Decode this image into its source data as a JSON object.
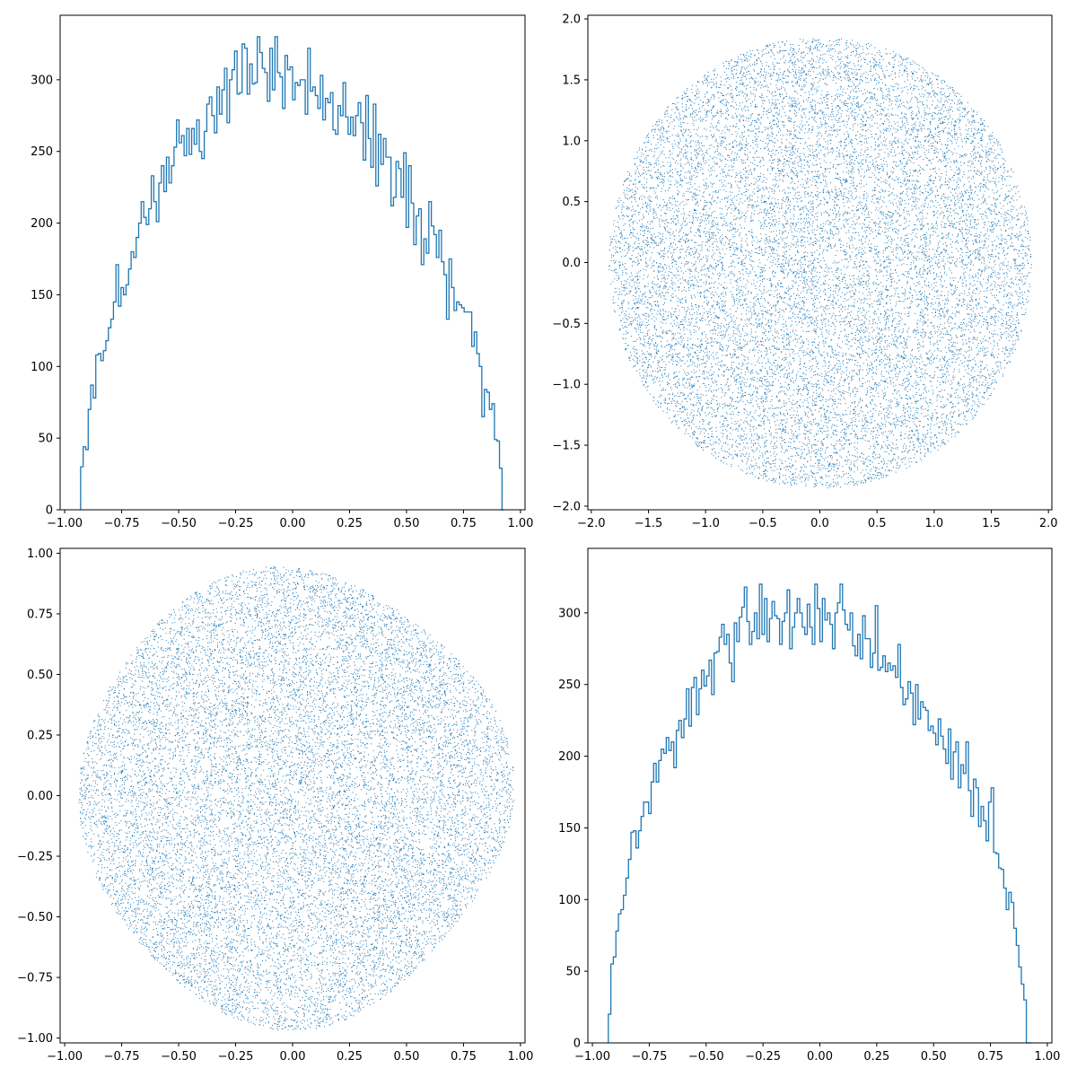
{
  "colors": {
    "series": "#1f77b4",
    "axes": "#000000",
    "background": "#ffffff"
  },
  "chart_data": [
    {
      "type": "bar",
      "style": "step-histogram",
      "grid": false,
      "xlim": [
        -1.02,
        1.02
      ],
      "ylim": [
        0,
        345
      ],
      "xticks": [
        -1.0,
        -0.75,
        -0.5,
        -0.25,
        0.0,
        0.25,
        0.5,
        0.75,
        1.0
      ],
      "xtick_labels": [
        "−1.00",
        "−0.75",
        "−0.50",
        "−0.25",
        "0.00",
        "0.25",
        "0.50",
        "0.75",
        "1.00"
      ],
      "yticks": [
        0,
        50,
        100,
        150,
        200,
        250,
        300
      ],
      "ytick_labels": [
        "0",
        "50",
        "100",
        "150",
        "200",
        "250",
        "300"
      ],
      "range": [
        -0.93,
        0.93
      ],
      "values": [
        30,
        44,
        42,
        70,
        87,
        78,
        108,
        109,
        104,
        111,
        118,
        127,
        133,
        145,
        171,
        142,
        155,
        150,
        157,
        168,
        180,
        176,
        190,
        200,
        215,
        204,
        199,
        210,
        233,
        215,
        201,
        228,
        240,
        222,
        246,
        228,
        240,
        253,
        272,
        256,
        261,
        247,
        266,
        248,
        266,
        255,
        272,
        250,
        245,
        264,
        283,
        288,
        275,
        263,
        295,
        276,
        293,
        308,
        270,
        300,
        307,
        320,
        290,
        291,
        325,
        322,
        290,
        311,
        297,
        298,
        330,
        319,
        308,
        305,
        285,
        322,
        293,
        330,
        305,
        302,
        280,
        317,
        307,
        309,
        286,
        298,
        296,
        300,
        300,
        276,
        322,
        292,
        295,
        289,
        280,
        303,
        272,
        287,
        284,
        291,
        265,
        262,
        282,
        275,
        298,
        274,
        262,
        274,
        261,
        275,
        284,
        270,
        244,
        289,
        259,
        239,
        283,
        226,
        262,
        241,
        259,
        246,
        246,
        212,
        218,
        243,
        238,
        218,
        249,
        197,
        240,
        214,
        185,
        205,
        210,
        171,
        189,
        179,
        215,
        198,
        192,
        176,
        195,
        173,
        164,
        133,
        175,
        155,
        139,
        145,
        143,
        141,
        138,
        138,
        138,
        114,
        124,
        109,
        100,
        65,
        84,
        82,
        70,
        74,
        49,
        48,
        29,
        0
      ]
    },
    {
      "type": "scatter",
      "style": "pixel-dots",
      "grid": false,
      "shape": "disk",
      "radius": 1.85,
      "center": [
        0,
        0
      ],
      "n_points": 16000,
      "xlim": [
        -2.03,
        2.03
      ],
      "ylim": [
        -2.03,
        2.03
      ],
      "xticks": [
        -2.0,
        -1.5,
        -1.0,
        -0.5,
        0.0,
        0.5,
        1.0,
        1.5,
        2.0
      ],
      "xtick_labels": [
        "−2.0",
        "−1.5",
        "−1.0",
        "−0.5",
        "0.0",
        "0.5",
        "1.0",
        "1.5",
        "2.0"
      ],
      "yticks": [
        -2.0,
        -1.5,
        -1.0,
        -0.5,
        0.0,
        0.5,
        1.0,
        1.5,
        2.0
      ],
      "ytick_labels": [
        "−2.0",
        "−1.5",
        "−1.0",
        "−0.5",
        "0.0",
        "0.5",
        "1.0",
        "1.5",
        "2.0"
      ]
    },
    {
      "type": "scatter",
      "style": "pixel-dots",
      "grid": false,
      "shape": "rounded-blob",
      "radius": 0.93,
      "center": [
        0,
        0
      ],
      "n_points": 16000,
      "xlim": [
        -1.02,
        1.02
      ],
      "ylim": [
        -1.02,
        1.02
      ],
      "xticks": [
        -1.0,
        -0.75,
        -0.5,
        -0.25,
        0.0,
        0.25,
        0.5,
        0.75,
        1.0
      ],
      "xtick_labels": [
        "−1.00",
        "−0.75",
        "−0.50",
        "−0.25",
        "0.00",
        "0.25",
        "0.50",
        "0.75",
        "1.00"
      ],
      "yticks": [
        -1.0,
        -0.75,
        -0.5,
        -0.25,
        0.0,
        0.25,
        0.5,
        0.75,
        1.0
      ],
      "ytick_labels": [
        "−1.00",
        "−0.75",
        "−0.50",
        "−0.25",
        "0.00",
        "0.25",
        "0.50",
        "0.75",
        "1.00"
      ]
    },
    {
      "type": "bar",
      "style": "step-histogram",
      "grid": false,
      "xlim": [
        -1.02,
        1.02
      ],
      "ylim": [
        0,
        345
      ],
      "xticks": [
        -1.0,
        -0.75,
        -0.5,
        -0.25,
        0.0,
        0.25,
        0.5,
        0.75,
        1.0
      ],
      "xtick_labels": [
        "−1.00",
        "−0.75",
        "−0.50",
        "−0.25",
        "0.00",
        "0.25",
        "0.50",
        "0.75",
        "1.00"
      ],
      "yticks": [
        0,
        50,
        100,
        150,
        200,
        250,
        300
      ],
      "ytick_labels": [
        "0",
        "50",
        "100",
        "150",
        "200",
        "250",
        "300"
      ],
      "range": [
        -0.93,
        0.93
      ],
      "values": [
        20,
        55,
        60,
        78,
        90,
        93,
        103,
        115,
        128,
        147,
        148,
        136,
        148,
        158,
        168,
        168,
        160,
        182,
        195,
        182,
        197,
        205,
        202,
        213,
        204,
        210,
        192,
        218,
        225,
        213,
        226,
        247,
        221,
        248,
        255,
        229,
        247,
        260,
        249,
        256,
        267,
        243,
        272,
        273,
        283,
        292,
        278,
        285,
        265,
        252,
        293,
        280,
        297,
        304,
        318,
        294,
        278,
        287,
        300,
        282,
        320,
        285,
        310,
        280,
        296,
        308,
        298,
        296,
        278,
        294,
        300,
        316,
        275,
        290,
        300,
        310,
        300,
        290,
        285,
        306,
        290,
        278,
        320,
        303,
        280,
        310,
        295,
        300,
        292,
        275,
        300,
        307,
        320,
        302,
        292,
        288,
        300,
        277,
        270,
        285,
        268,
        298,
        282,
        282,
        262,
        272,
        305,
        260,
        262,
        270,
        259,
        265,
        260,
        263,
        255,
        278,
        248,
        236,
        240,
        252,
        244,
        222,
        250,
        226,
        238,
        234,
        232,
        218,
        221,
        216,
        208,
        226,
        214,
        205,
        195,
        219,
        184,
        203,
        210,
        178,
        194,
        188,
        210,
        176,
        158,
        184,
        178,
        151,
        165,
        155,
        141,
        168,
        178,
        133,
        132,
        122,
        121,
        108,
        93,
        105,
        98,
        80,
        68,
        53,
        41,
        30,
        0,
        0
      ]
    }
  ]
}
